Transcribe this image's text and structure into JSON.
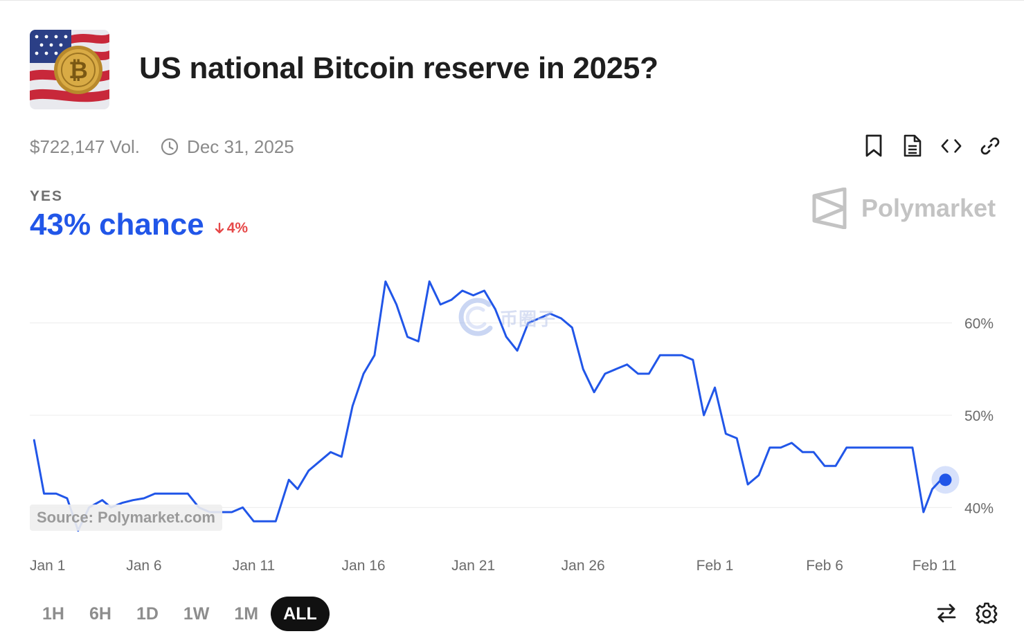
{
  "market": {
    "title": "US national Bitcoin reserve in 2025?",
    "volume": "$722,147 Vol.",
    "end_date": "Dec 31, 2025",
    "image_icon": "bitcoin-flag-icon"
  },
  "actions": [
    {
      "name": "bookmark-button",
      "icon": "bookmark-icon"
    },
    {
      "name": "document-button",
      "icon": "document-icon"
    },
    {
      "name": "embed-button",
      "icon": "code-icon"
    },
    {
      "name": "copy-link-button",
      "icon": "link-icon"
    }
  ],
  "outcome": {
    "label": "YES",
    "chance_value": "43%",
    "chance_word": "chance",
    "delta": "4%",
    "delta_direction": "down"
  },
  "brand": {
    "name": "Polymarket"
  },
  "source_label": "Source: Polymarket.com",
  "watermark": {
    "text": "币圈子"
  },
  "colors": {
    "line": "#2156e8",
    "negative": "#e64848",
    "grid": "#ececec",
    "axis_text": "#6a6a6a"
  },
  "chart_data": {
    "type": "line",
    "title": "",
    "xlabel": "",
    "ylabel": "",
    "y_ticks": [
      40,
      50,
      60
    ],
    "y_tick_labels": [
      "40%",
      "50%",
      "60%"
    ],
    "ylim": [
      35,
      65
    ],
    "x_ticks": [
      1,
      6,
      11,
      16,
      21,
      26,
      32,
      37,
      42
    ],
    "x_tick_labels": [
      "Jan 1",
      "Jan 6",
      "Jan 11",
      "Jan 16",
      "Jan 21",
      "Jan 26",
      "Feb 1",
      "Feb 6",
      "Feb 11"
    ],
    "xlim": [
      0.8,
      42.8
    ],
    "grid": true,
    "series": [
      {
        "color": "#2156e8",
        "x": [
          1.0,
          1.45,
          2.0,
          2.5,
          3.0,
          3.5,
          4.1,
          4.5,
          5.0,
          5.5,
          6.0,
          6.5,
          7.5,
          8.0,
          8.5,
          9.0,
          9.5,
          10.0,
          10.5,
          11.0,
          11.5,
          12.0,
          12.6,
          13.0,
          13.5,
          14.0,
          14.5,
          15.0,
          15.5,
          16.0,
          16.5,
          17.0,
          17.5,
          18.0,
          18.5,
          19.0,
          19.5,
          20.0,
          20.5,
          21.0,
          21.5,
          22.0,
          22.5,
          23.0,
          23.5,
          24.0,
          24.5,
          25.0,
          25.5,
          26.0,
          26.5,
          27.0,
          27.5,
          28.0,
          28.5,
          29.0,
          29.5,
          30.0,
          30.5,
          31.0,
          31.5,
          32.0,
          32.5,
          33.0,
          33.5,
          34.0,
          34.5,
          35.0,
          35.5,
          36.0,
          36.5,
          37.0,
          37.5,
          38.0,
          38.5,
          39.0,
          39.5,
          40.0,
          40.5,
          41.0,
          41.5,
          41.9,
          42.3,
          42.5
        ],
        "y": [
          47.3,
          41.5,
          41.5,
          41.0,
          37.5,
          40.0,
          40.8,
          40.0,
          40.5,
          40.8,
          41.0,
          41.5,
          41.5,
          41.5,
          40.0,
          39.5,
          39.5,
          39.5,
          40.0,
          38.5,
          38.5,
          38.5,
          43.0,
          42.0,
          44.0,
          45.0,
          46.0,
          45.5,
          51.0,
          54.5,
          56.5,
          64.5,
          62.0,
          58.5,
          58.0,
          64.5,
          62.0,
          62.5,
          63.5,
          63.0,
          63.5,
          61.5,
          58.5,
          57.0,
          60.0,
          60.5,
          61.0,
          60.5,
          59.5,
          55.0,
          52.5,
          54.5,
          55.0,
          55.5,
          54.5,
          54.5,
          56.5,
          56.5,
          56.5,
          56.0,
          50.0,
          53.0,
          48.0,
          47.5,
          42.5,
          43.5,
          46.5,
          46.5,
          47.0,
          46.0,
          46.0,
          44.5,
          44.5,
          46.5,
          46.5,
          46.5,
          46.5,
          46.5,
          46.5,
          46.5,
          39.5,
          42.0,
          43.0,
          43.0
        ],
        "end_marker": true
      }
    ]
  },
  "time_ranges": [
    "1H",
    "6H",
    "1D",
    "1W",
    "1M",
    "ALL"
  ],
  "active_range": "ALL",
  "tools": [
    {
      "name": "swap-outcome-button",
      "icon": "swap-icon"
    },
    {
      "name": "chart-settings-button",
      "icon": "gear-icon"
    }
  ]
}
